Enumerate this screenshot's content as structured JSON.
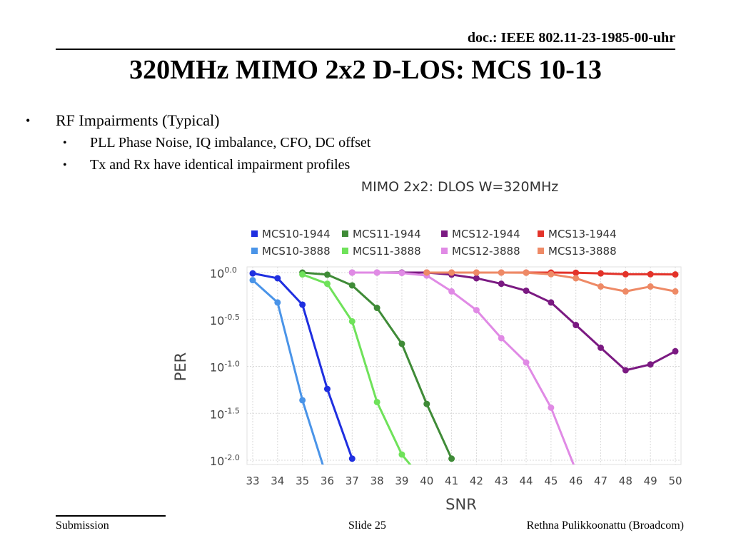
{
  "slide": {
    "doc_id": "doc.: IEEE 802.11-23-1985-00-uhr",
    "title": "320MHz MIMO 2x2 D-LOS: MCS 10-13",
    "bullets": [
      {
        "text": "RF Impairments (Typical)",
        "sub": [
          "PLL Phase Noise, IQ imbalance, CFO, DC offset",
          "Tx and Rx have identical impairment profiles"
        ]
      }
    ],
    "bullet_glyph": "•",
    "footer": {
      "left": "Submission",
      "center": "Slide 25",
      "right": "Rethna Pulikkoonattu (Broadcom)"
    }
  },
  "chart_data": {
    "type": "line",
    "title": "MIMO 2x2: DLOS W=320MHz",
    "xlabel": "SNR",
    "ylabel": "PER",
    "x_scale": "linear",
    "y_scale": "log",
    "xlim": [
      33,
      50
    ],
    "ylim": [
      0.01,
      1.0
    ],
    "x_ticks": [
      33,
      34,
      35,
      36,
      37,
      38,
      39,
      40,
      41,
      42,
      43,
      44,
      45,
      46,
      47,
      48,
      49,
      50
    ],
    "y_ticks": [
      {
        "value": 1.0,
        "base": "10",
        "exp": "0.0"
      },
      {
        "value": 0.316,
        "base": "10",
        "exp": "-0.5"
      },
      {
        "value": 0.1,
        "base": "10",
        "exp": "-1.0"
      },
      {
        "value": 0.0316,
        "base": "10",
        "exp": "-1.5"
      },
      {
        "value": 0.01,
        "base": "10",
        "exp": "-2.0"
      }
    ],
    "grid": true,
    "legend_position": "top",
    "series": [
      {
        "name": "MCS10-1944",
        "color": "#1f2fe0",
        "x": [
          33,
          34,
          35,
          36,
          37
        ],
        "y": [
          0.98,
          0.87,
          0.455,
          0.0575,
          0.0104
        ]
      },
      {
        "name": "MCS11-1944",
        "color": "#3f8b37",
        "x": [
          35,
          36,
          37,
          38,
          39,
          40,
          41
        ],
        "y": [
          1.0,
          0.95,
          0.73,
          0.42,
          0.174,
          0.0398,
          0.0104
        ]
      },
      {
        "name": "MCS12-1944",
        "color": "#7b1a82",
        "x": [
          37,
          38,
          39,
          40,
          41,
          42,
          43,
          44,
          45,
          46,
          47,
          48,
          49,
          50
        ],
        "y": [
          1.0,
          1.0,
          1.0,
          1.0,
          0.95,
          0.87,
          0.76,
          0.64,
          0.48,
          0.276,
          0.158,
          0.091,
          0.105,
          0.145
        ]
      },
      {
        "name": "MCS13-1944",
        "color": "#e3332a",
        "x": [
          40,
          41,
          42,
          43,
          44,
          45,
          46,
          47,
          48,
          49,
          50
        ],
        "y": [
          1.0,
          1.0,
          1.0,
          1.0,
          1.0,
          1.0,
          0.995,
          0.98,
          0.96,
          0.96,
          0.955
        ]
      },
      {
        "name": "MCS10-3888",
        "color": "#4a94e8",
        "x": [
          33,
          34,
          35,
          36
        ],
        "y": [
          0.83,
          0.48,
          0.0436,
          0.0063
        ]
      },
      {
        "name": "MCS11-3888",
        "color": "#6fe25a",
        "x": [
          35,
          36,
          37,
          38,
          39,
          40
        ],
        "y": [
          0.955,
          0.76,
          0.302,
          0.0417,
          0.0115,
          0.0055
        ]
      },
      {
        "name": "MCS12-3888",
        "color": "#e08ae5",
        "x": [
          37,
          38,
          39,
          40,
          41,
          42,
          43,
          44,
          45,
          46
        ],
        "y": [
          1.0,
          1.0,
          0.99,
          0.93,
          0.63,
          0.398,
          0.2,
          0.11,
          0.0363,
          0.0078
        ]
      },
      {
        "name": "MCS13-3888",
        "color": "#ee8a66",
        "x": [
          40,
          41,
          42,
          43,
          44,
          45,
          46,
          47,
          48,
          49,
          50
        ],
        "y": [
          1.0,
          1.0,
          1.0,
          1.0,
          0.995,
          0.96,
          0.87,
          0.71,
          0.63,
          0.71,
          0.63
        ]
      }
    ]
  }
}
